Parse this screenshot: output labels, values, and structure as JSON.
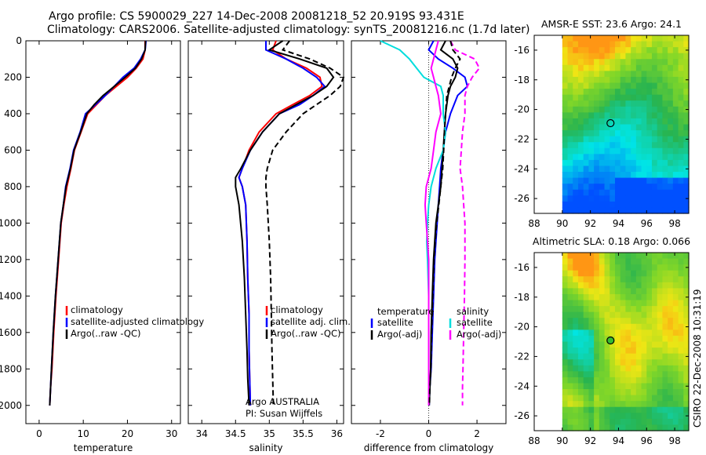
{
  "header": {
    "line1": "Argo profile: CS 5900029_227 14-Dec-2008 20081218_52 20.919S 93.431E",
    "line2": "Climatology: CARS2006. Satellite-adjusted climatology: synTS_20081216.nc (1.7d later)"
  },
  "colors": {
    "clim": "#ff0000",
    "sat": "#0000ff",
    "argo": "#000000",
    "sat_s": "#00dddd",
    "argo_s": "#ff00ff"
  },
  "chart_data": [
    {
      "type": "line",
      "xlabel": "temperature",
      "ylabel": "",
      "xlim": [
        -3,
        32
      ],
      "ylim": [
        2100,
        0
      ],
      "xticks": [
        0,
        10,
        20,
        30
      ],
      "yticks": [
        0,
        200,
        400,
        600,
        800,
        1000,
        1200,
        1400,
        1600,
        1800,
        2000
      ],
      "series": [
        {
          "name": "climatology",
          "style": "solid",
          "color": "#ff0000",
          "x": [
            24.0,
            24.0,
            23.5,
            22.0,
            20.0,
            17.5,
            15.0,
            13.0,
            11.0,
            9.5,
            8.0,
            7.2,
            6.3,
            5.6,
            5.0,
            4.4,
            3.8,
            3.3,
            2.9,
            2.6,
            2.4
          ],
          "y": [
            0,
            50,
            100,
            150,
            200,
            250,
            300,
            350,
            400,
            500,
            600,
            700,
            800,
            900,
            1000,
            1200,
            1400,
            1600,
            1800,
            1900,
            2000
          ]
        },
        {
          "name": "satellite-adjusted climatology",
          "style": "solid",
          "color": "#0000ff",
          "x": [
            24.2,
            24.0,
            23.0,
            21.5,
            19.0,
            17.0,
            15.0,
            12.8,
            10.5,
            9.3,
            7.8,
            7.0,
            6.0,
            5.5,
            4.9,
            4.3,
            3.7,
            3.2,
            2.8,
            2.6,
            2.4
          ],
          "y": [
            0,
            50,
            100,
            150,
            200,
            250,
            300,
            350,
            400,
            500,
            600,
            700,
            800,
            900,
            1000,
            1200,
            1400,
            1600,
            1800,
            1900,
            2000
          ]
        },
        {
          "name": "Argo(..raw -QC)",
          "style": "solid",
          "color": "#000000",
          "x": [
            24.1,
            24.0,
            23.2,
            21.8,
            19.5,
            17.0,
            14.5,
            12.5,
            10.8,
            9.4,
            7.9,
            7.1,
            6.1,
            5.5,
            4.9,
            4.3,
            3.7,
            3.2,
            2.8,
            2.6,
            2.4
          ],
          "y": [
            0,
            50,
            100,
            150,
            200,
            250,
            300,
            350,
            400,
            500,
            600,
            700,
            800,
            900,
            1000,
            1200,
            1400,
            1600,
            1800,
            1900,
            2000
          ]
        }
      ],
      "legend": [
        "climatology",
        "satellite-adjusted climatology",
        "Argo(..raw -QC)"
      ],
      "legend_position": "lower-right"
    },
    {
      "type": "line",
      "xlabel": "salinity",
      "ylabel": "",
      "xlim": [
        33.8,
        36.1
      ],
      "ylim": [
        2100,
        0
      ],
      "xticks": [
        34,
        34.5,
        35,
        35.5,
        36
      ],
      "series": [
        {
          "name": "climatology",
          "style": "solid",
          "color": "#ff0000",
          "x": [
            35.1,
            35.05,
            35.25,
            35.55,
            35.75,
            35.78,
            35.6,
            35.35,
            35.1,
            34.85,
            34.7,
            34.6,
            34.55,
            34.6,
            34.65,
            34.67,
            34.68,
            34.7,
            34.7,
            34.71,
            34.72
          ],
          "y": [
            0,
            50,
            100,
            150,
            200,
            250,
            300,
            350,
            400,
            500,
            600,
            700,
            750,
            800,
            900,
            1100,
            1300,
            1500,
            1700,
            1850,
            2000
          ]
        },
        {
          "name": "satellite adj. clim.",
          "style": "solid",
          "color": "#0000ff",
          "x": [
            34.95,
            34.95,
            35.25,
            35.5,
            35.7,
            35.82,
            35.65,
            35.45,
            35.15,
            34.9,
            34.72,
            34.6,
            34.55,
            34.6,
            34.65,
            34.67,
            34.68,
            34.7,
            34.7,
            34.71,
            34.72
          ],
          "y": [
            0,
            50,
            100,
            150,
            200,
            250,
            300,
            350,
            400,
            500,
            600,
            700,
            750,
            800,
            900,
            1100,
            1300,
            1500,
            1700,
            1850,
            2000
          ]
        },
        {
          "name": "Argo(..raw -QC)",
          "style": "solid",
          "color": "#000000",
          "x": [
            35.2,
            35.0,
            35.45,
            35.85,
            35.95,
            35.85,
            35.65,
            35.4,
            35.15,
            34.9,
            34.72,
            34.58,
            34.5,
            34.5,
            34.55,
            34.6,
            34.63,
            34.65,
            34.67,
            34.68,
            34.7
          ],
          "y": [
            0,
            50,
            100,
            150,
            200,
            250,
            300,
            350,
            400,
            500,
            600,
            700,
            750,
            800,
            900,
            1100,
            1300,
            1500,
            1700,
            1850,
            2000
          ]
        },
        {
          "name": "Argo(..raw -QC)",
          "style": "dashed",
          "color": "#000000",
          "x": [
            35.3,
            35.2,
            35.6,
            35.9,
            36.1,
            36.05,
            35.9,
            35.7,
            35.5,
            35.25,
            35.05,
            34.97,
            34.95,
            34.95,
            34.97,
            35.0,
            35.02,
            35.03,
            35.04,
            35.05,
            35.06
          ],
          "y": [
            0,
            50,
            100,
            150,
            200,
            250,
            300,
            350,
            400,
            500,
            600,
            700,
            750,
            800,
            900,
            1100,
            1300,
            1500,
            1700,
            1850,
            2000
          ]
        }
      ],
      "legend": [
        "climatology",
        "satellite adj. clim.",
        "Argo(..raw -QC)"
      ],
      "legend_position": "lower-right",
      "annotation": [
        "Argo AUSTRALIA",
        "PI: Susan Wijffels"
      ]
    },
    {
      "type": "line",
      "xlabel": "difference from climatology",
      "ylabel": "",
      "xlim": [
        -3.2,
        3.2
      ],
      "ylim": [
        2100,
        0
      ],
      "xticks": [
        -2,
        0,
        2
      ],
      "series": [
        {
          "name": "satellite",
          "group": "temperature",
          "style": "solid",
          "color": "#0000ff",
          "x": [
            0.2,
            0.0,
            0.4,
            1.0,
            1.5,
            1.6,
            1.2,
            0.9,
            0.7,
            0.6,
            0.5,
            0.45,
            0.4,
            0.35,
            0.3,
            0.25,
            0.2,
            0.15,
            0.1,
            0.05,
            0.02
          ],
          "y": [
            0,
            50,
            100,
            150,
            200,
            250,
            300,
            400,
            500,
            600,
            700,
            800,
            900,
            1000,
            1100,
            1200,
            1400,
            1600,
            1800,
            1900,
            2000
          ]
        },
        {
          "name": "Argo(-adj)",
          "group": "temperature",
          "style": "solid",
          "color": "#000000",
          "x": [
            0.7,
            0.5,
            1.0,
            1.2,
            1.1,
            0.9,
            0.8,
            0.7,
            0.65,
            0.6,
            0.55,
            0.5,
            0.4,
            0.3,
            0.25,
            0.2,
            0.15,
            0.1,
            0.08,
            0.05,
            0.02
          ],
          "y": [
            0,
            50,
            100,
            150,
            200,
            250,
            300,
            400,
            500,
            600,
            700,
            800,
            900,
            1000,
            1100,
            1200,
            1400,
            1600,
            1800,
            1900,
            2000
          ]
        },
        {
          "name": "satellite",
          "group": "salinity",
          "style": "solid",
          "color": "#00dddd",
          "x": [
            -2.0,
            -1.2,
            -0.8,
            -0.5,
            -0.2,
            0.5,
            0.6,
            0.6,
            0.7,
            0.6,
            0.3,
            0.1,
            0.0,
            -0.05,
            -0.08,
            -0.05,
            0.0,
            0.0,
            0.0,
            0.0,
            0.0
          ],
          "y": [
            0,
            50,
            100,
            150,
            200,
            250,
            300,
            400,
            500,
            600,
            700,
            800,
            900,
            1000,
            1100,
            1200,
            1400,
            1600,
            1800,
            1900,
            2000
          ]
        },
        {
          "name": "Argo(-adj)",
          "group": "salinity",
          "style": "dashed",
          "color": "#ff00ff",
          "x": [
            0.9,
            1.1,
            1.9,
            2.1,
            1.8,
            1.6,
            1.5,
            1.5,
            1.4,
            1.35,
            1.3,
            1.4,
            1.45,
            1.5,
            1.5,
            1.5,
            1.48,
            1.45,
            1.42,
            1.4,
            1.4
          ],
          "y": [
            0,
            50,
            100,
            150,
            200,
            250,
            300,
            400,
            500,
            600,
            700,
            800,
            900,
            1000,
            1100,
            1200,
            1400,
            1600,
            1800,
            1900,
            2000
          ]
        },
        {
          "name": "Argo(-adj)",
          "group": "salinity",
          "style": "solid",
          "color": "#ff00ff",
          "x": [
            0.4,
            0.3,
            0.2,
            0.1,
            0.2,
            0.3,
            0.4,
            0.5,
            0.3,
            0.2,
            0.1,
            -0.1,
            -0.15,
            -0.1,
            -0.05,
            0.0,
            0.0,
            0.0,
            0.0,
            0.0,
            0.0
          ],
          "y": [
            0,
            50,
            100,
            150,
            200,
            250,
            300,
            400,
            500,
            600,
            700,
            800,
            900,
            1000,
            1100,
            1200,
            1400,
            1600,
            1800,
            1900,
            2000
          ]
        },
        {
          "name": "Argo(-adj)",
          "group": "temperature",
          "style": "dashed",
          "color": "#000000",
          "x": [
            0.9,
            1.0,
            1.3,
            1.1,
            0.95,
            0.85,
            0.75,
            0.7,
            0.65,
            0.62,
            0.58,
            0.5,
            0.42,
            0.33,
            0.27,
            0.22,
            0.17,
            0.12,
            0.09,
            0.05,
            0.03
          ],
          "y": [
            0,
            50,
            100,
            150,
            200,
            250,
            300,
            400,
            500,
            600,
            700,
            800,
            900,
            1000,
            1100,
            1200,
            1400,
            1600,
            1800,
            1900,
            2000
          ]
        }
      ],
      "legend": {
        "temperature_header": "temperature",
        "salinity_header": "salinity",
        "temperature_items": [
          "satellite",
          "Argo(-adj)"
        ],
        "salinity_items": [
          "satellite",
          "Argo(-adj)"
        ]
      },
      "legend_position": "lower-center"
    },
    {
      "type": "heatmap",
      "title": "AMSR-E SST: 23.6 Argo: 24.1",
      "xlim": [
        88,
        99
      ],
      "ylim": [
        -27,
        -15
      ],
      "xticks": [
        88,
        90,
        92,
        94,
        96,
        98
      ],
      "yticks": [
        -16,
        -18,
        -20,
        -22,
        -24,
        -26
      ],
      "data_extent_lon": [
        90,
        99
      ],
      "marker": {
        "lon": 93.43,
        "lat": -20.92
      }
    },
    {
      "type": "heatmap",
      "title": "Altimetric SLA: 0.18 Argo: 0.066",
      "xlim": [
        88,
        99
      ],
      "ylim": [
        -27,
        -15
      ],
      "xticks": [
        88,
        90,
        92,
        94,
        96,
        98
      ],
      "yticks": [
        -16,
        -18,
        -20,
        -22,
        -24,
        -26
      ],
      "data_extent_lon": [
        90,
        99
      ],
      "marker": {
        "lon": 93.43,
        "lat": -20.92
      }
    }
  ],
  "side_label": "CSIRO 22-Dec-2008 10:31:19"
}
